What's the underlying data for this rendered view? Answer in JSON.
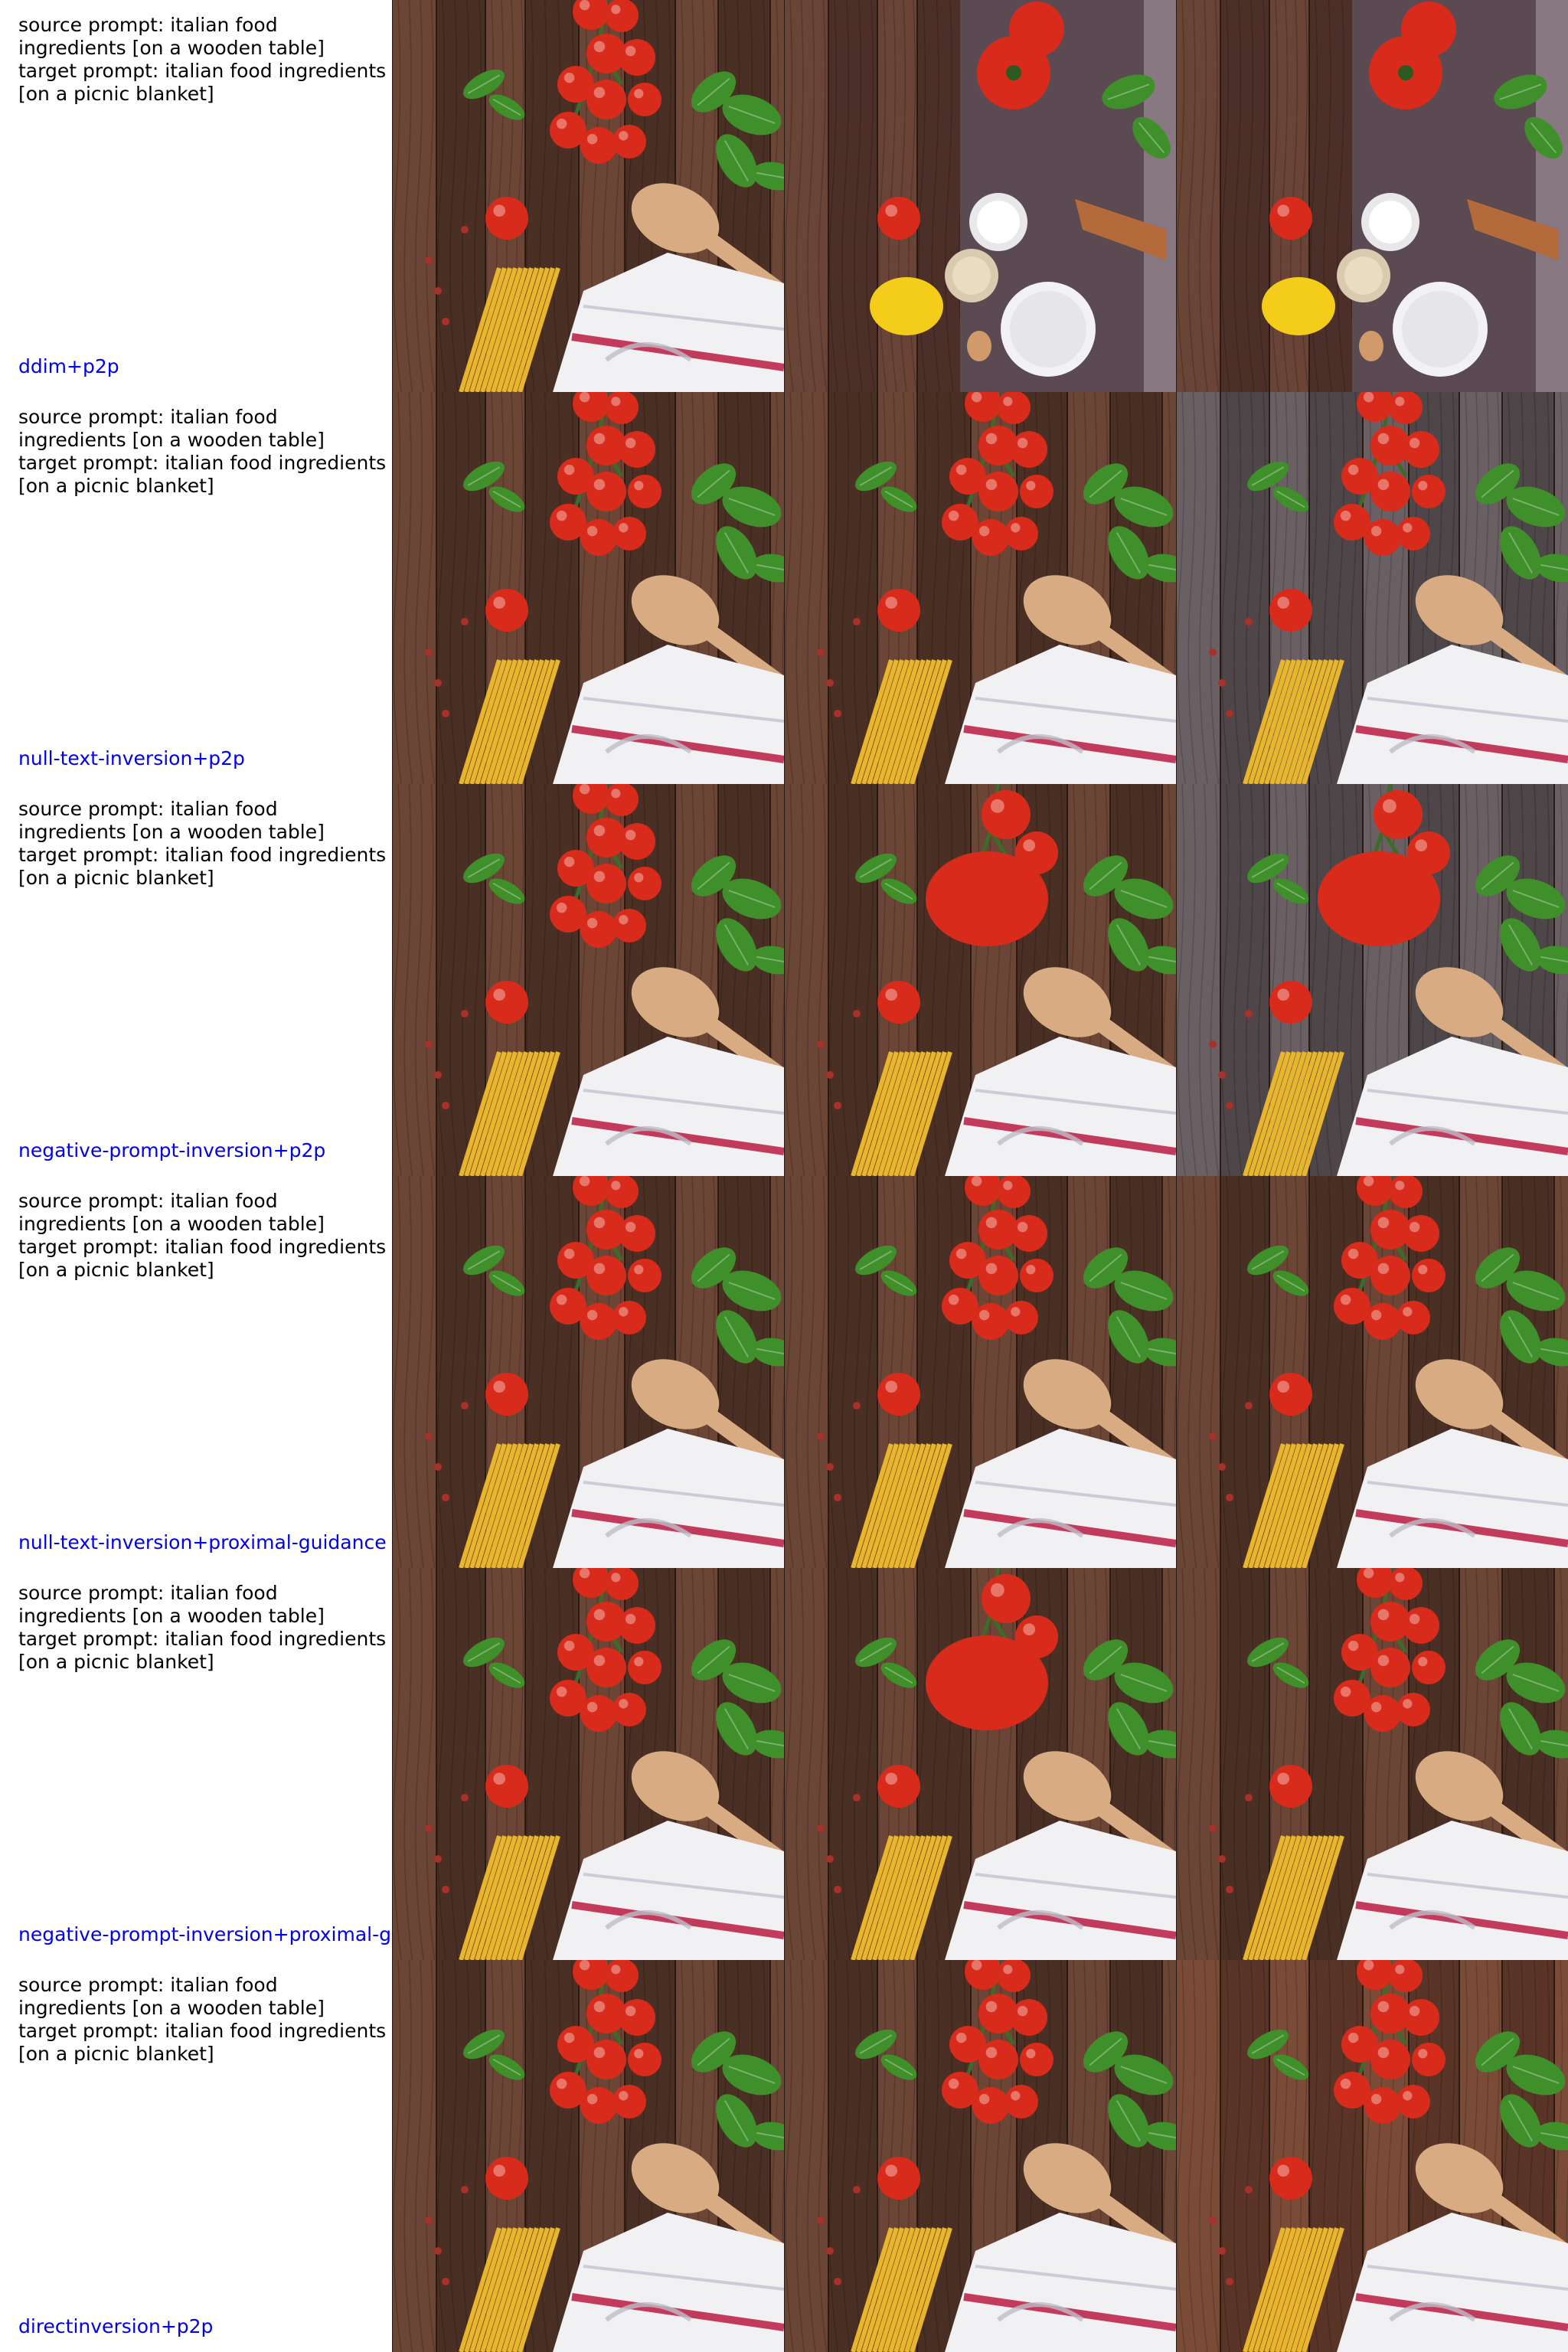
{
  "colors": {
    "method_label": "#0000ee",
    "wood_dark": "#4a2f24",
    "wood_mid": "#6b4535",
    "tomato_red": "#d92b1b",
    "basil_green": "#3f8f2a",
    "pasta_yellow": "#e9b52a",
    "towel_white": "#f1f0f2",
    "towel_stripe": "#c23a5c",
    "spoon_wood": "#d9ab82"
  },
  "rows": [
    {
      "prompt": "source prompt: italian food\ningredients [on a wooden table]\ntarget prompt: italian food ingredients\n[on a picnic blanket]",
      "method": "ddim+p2p",
      "images": [
        {
          "scene": "cherry-tomatoes-basil-spoon-pasta-towel"
        },
        {
          "scene": "tomatoes-flour-egg-on-board"
        },
        {
          "scene": "tomatoes-flour-egg-on-board"
        }
      ]
    },
    {
      "prompt": "source prompt: italian food\ningredients [on a wooden table]\ntarget prompt: italian food ingredients\n[on a picnic blanket]",
      "method": "null-text-inversion+p2p",
      "images": [
        {
          "scene": "cherry-tomatoes-basil-spoon-pasta-towel"
        },
        {
          "scene": "cherry-tomatoes-basil-spoon-pasta-towel"
        },
        {
          "scene": "cherry-tomatoes-basil-spoon-pasta-towel"
        }
      ]
    },
    {
      "prompt": "source prompt: italian food\ningredients [on a wooden table]\ntarget prompt: italian food ingredients\n[on a picnic blanket]",
      "method": "negative-prompt-inversion+p2p",
      "images": [
        {
          "scene": "cherry-tomatoes-basil-spoon-pasta-towel"
        },
        {
          "scene": "large-tomatoes-basil-spoon-pasta-towel"
        },
        {
          "scene": "large-tomatoes-basil-spoon-pasta-towel"
        }
      ]
    },
    {
      "prompt": "source prompt: italian food\ningredients [on a wooden table]\ntarget prompt: italian food ingredients\n[on a picnic blanket]",
      "method": "null-text-inversion+proximal-guidance",
      "images": [
        {
          "scene": "cherry-tomatoes-basil-spoon-pasta-towel"
        },
        {
          "scene": "cherry-tomatoes-basil-spoon-pasta-towel"
        },
        {
          "scene": "cherry-tomatoes-basil-spoon-pasta-towel"
        }
      ]
    },
    {
      "prompt": "source prompt: italian food\ningredients [on a wooden table]\ntarget prompt: italian food ingredients\n[on a picnic blanket]",
      "method": "negative-prompt-inversion+proximal-g",
      "images": [
        {
          "scene": "cherry-tomatoes-basil-spoon-pasta-towel"
        },
        {
          "scene": "large-tomatoes-basil-spoon-pasta-towel"
        },
        {
          "scene": "cherry-tomatoes-basil-spoon-pasta-towel"
        }
      ]
    },
    {
      "prompt": "source prompt: italian food\ningredients [on a wooden table]\ntarget prompt: italian food ingredients\n[on a picnic blanket]",
      "method": "directinversion+p2p",
      "images": [
        {
          "scene": "cherry-tomatoes-basil-spoon-pasta-towel"
        },
        {
          "scene": "cherry-tomatoes-basil-spoon-pasta-towel"
        },
        {
          "scene": "cherry-tomatoes-basil-spoon-pasta-towel"
        }
      ]
    }
  ]
}
